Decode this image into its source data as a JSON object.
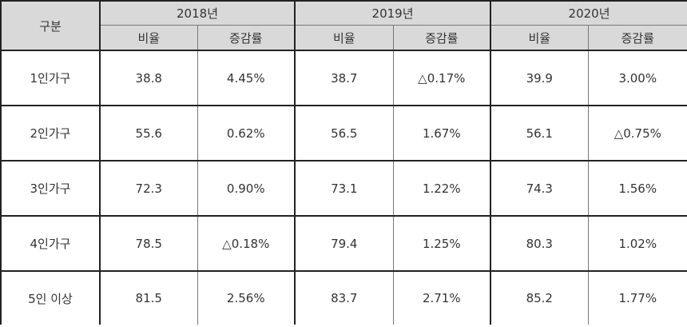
{
  "header": {
    "category": "구분",
    "years": [
      "2018년",
      "2019년",
      "2020년"
    ],
    "sub": [
      "비율",
      "증감률"
    ]
  },
  "rows": [
    {
      "label": "1인가구",
      "values": [
        "38.8",
        "4.45%",
        "38.7",
        "△0.17%",
        "39.9",
        "3.00%"
      ]
    },
    {
      "label": "2인가구",
      "values": [
        "55.6",
        "0.62%",
        "56.5",
        "1.67%",
        "56.1",
        "△0.75%"
      ]
    },
    {
      "label": "3인가구",
      "values": [
        "72.3",
        "0.90%",
        "73.1",
        "1.22%",
        "74.3",
        "1.56%"
      ]
    },
    {
      "label": "4인가구",
      "values": [
        "78.5",
        "△0.18%",
        "79.4",
        "1.25%",
        "80.3",
        "1.02%"
      ]
    },
    {
      "label": "5인 이상",
      "values": [
        "81.5",
        "2.56%",
        "83.7",
        "2.71%",
        "85.2",
        "1.77%"
      ]
    }
  ]
}
